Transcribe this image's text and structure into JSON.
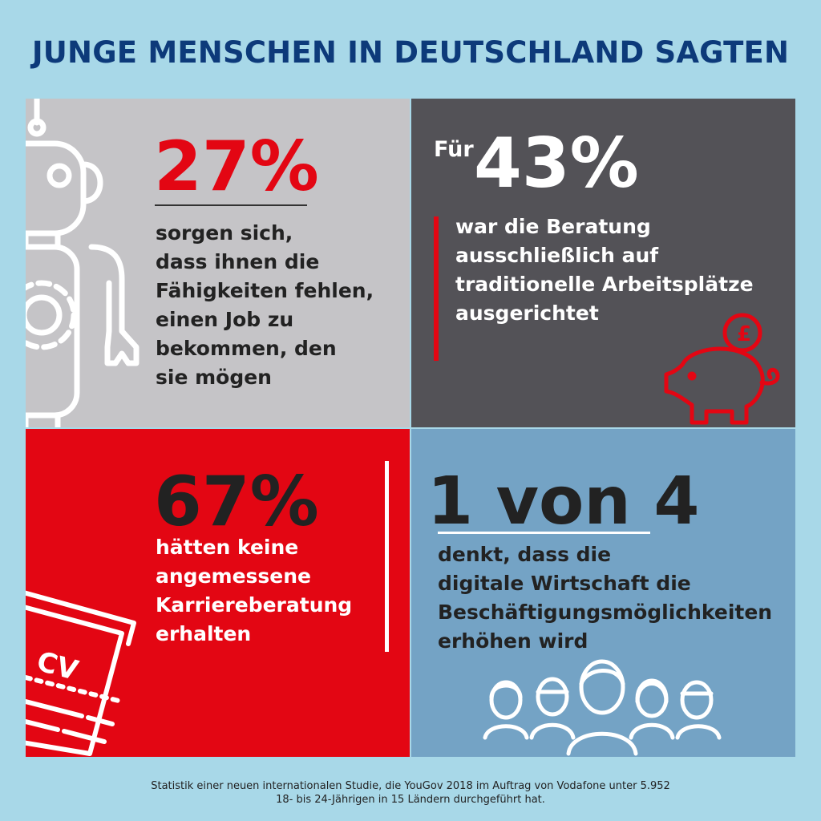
{
  "title": "JUNGE MENSCHEN IN DEUTSCHLAND SAGTEN",
  "panels": {
    "skills": {
      "stat": "27%",
      "text": "sorgen sich,\ndass ihnen die\nFähigkeiten fehlen,\neinen Job zu\nbekommen, den\nsie mögen",
      "icon": "robot-icon"
    },
    "advice": {
      "prefix": "Für",
      "stat": "43%",
      "text": "war die Beratung\nausschließlich auf\ntraditionelle Arbeitsplätze\nausgerichtet",
      "icon": "piggy-bank-icon"
    },
    "career": {
      "stat": "67%",
      "text": "hätten keine\nangemessene\nKarriereberatung\nerhalten",
      "icon": "cv-document-icon",
      "cv_label": "CV"
    },
    "digital": {
      "stat": "1 von 4",
      "text": "denkt, dass die\ndigitale Wirtschaft die\nBeschäftigungsmöglichkeiten\nerhöhen wird",
      "icon": "people-group-icon"
    }
  },
  "footer": "Statistik einer neuen internationalen Studie, die YouGov 2018 im Auftrag von Vodafone unter 5.952\n18- bis 24-Jährigen in 15 Ländern durchgeführt hat.",
  "colors": {
    "background": "#a8d8e8",
    "title": "#0d3a7a",
    "red": "#e30613",
    "dark_gray": "#535257",
    "light_gray": "#c5c4c7",
    "blue": "#74a3c5"
  }
}
